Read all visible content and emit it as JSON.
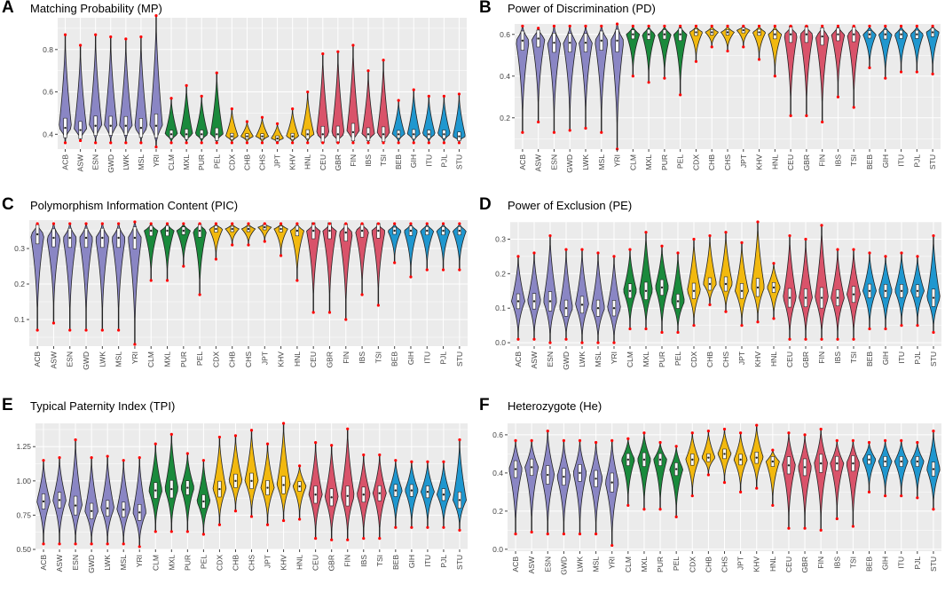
{
  "populations": [
    "ACB",
    "ASW",
    "ESN",
    "GWD",
    "LWK",
    "MSL",
    "YRI",
    "CLM",
    "MXL",
    "PUR",
    "PEL",
    "CDX",
    "CHB",
    "CHS",
    "JPT",
    "KHV",
    "HNL",
    "CEU",
    "GBR",
    "FIN",
    "IBS",
    "TSI",
    "BEB",
    "GIH",
    "ITU",
    "PJL",
    "STU"
  ],
  "group_colors": [
    "#8a86c4",
    "#8a86c4",
    "#8a86c4",
    "#8a86c4",
    "#8a86c4",
    "#8a86c4",
    "#8a86c4",
    "#1a8a3c",
    "#1a8a3c",
    "#1a8a3c",
    "#1a8a3c",
    "#f2b90f",
    "#f2b90f",
    "#f2b90f",
    "#f2b90f",
    "#f2b90f",
    "#f2b90f",
    "#d9536a",
    "#d9536a",
    "#d9536a",
    "#d9536a",
    "#d9536a",
    "#1f97cf",
    "#1f97cf",
    "#1f97cf",
    "#1f97cf",
    "#1f97cf"
  ],
  "colors": {
    "panel_bg": "#ebebeb",
    "grid": "#ffffff",
    "outlier": "#ff0000",
    "outline": "#222222"
  },
  "chart_data": [
    {
      "letter": "A",
      "title": "Matching Probability (MP)",
      "type": "violin",
      "ylim": [
        0.33,
        0.95
      ],
      "yticks": [
        0.4,
        0.6,
        0.8
      ],
      "tick_labels": [
        "0.4",
        "0.6",
        "0.8"
      ],
      "stats": [
        [
          0.36,
          0.87,
          0.43
        ],
        [
          0.37,
          0.82,
          0.42
        ],
        [
          0.36,
          0.87,
          0.44
        ],
        [
          0.36,
          0.86,
          0.44
        ],
        [
          0.36,
          0.85,
          0.44
        ],
        [
          0.36,
          0.86,
          0.43
        ],
        [
          0.34,
          0.96,
          0.44
        ],
        [
          0.36,
          0.57,
          0.4
        ],
        [
          0.36,
          0.63,
          0.4
        ],
        [
          0.36,
          0.58,
          0.4
        ],
        [
          0.36,
          0.69,
          0.4
        ],
        [
          0.36,
          0.52,
          0.39
        ],
        [
          0.36,
          0.46,
          0.39
        ],
        [
          0.36,
          0.48,
          0.39
        ],
        [
          0.36,
          0.45,
          0.38
        ],
        [
          0.36,
          0.52,
          0.39
        ],
        [
          0.36,
          0.6,
          0.4
        ],
        [
          0.36,
          0.78,
          0.4
        ],
        [
          0.36,
          0.79,
          0.4
        ],
        [
          0.36,
          0.82,
          0.41
        ],
        [
          0.36,
          0.7,
          0.4
        ],
        [
          0.36,
          0.75,
          0.4
        ],
        [
          0.36,
          0.56,
          0.4
        ],
        [
          0.36,
          0.61,
          0.4
        ],
        [
          0.36,
          0.58,
          0.4
        ],
        [
          0.36,
          0.58,
          0.4
        ],
        [
          0.36,
          0.59,
          0.39
        ]
      ]
    },
    {
      "letter": "B",
      "title": "Power of Discrimination (PD)",
      "type": "violin",
      "ylim": [
        0.05,
        0.65
      ],
      "yticks": [
        0.2,
        0.4,
        0.6
      ],
      "tick_labels": [
        "0.2",
        "0.4",
        "0.6"
      ],
      "stats": [
        [
          0.13,
          0.64,
          0.57
        ],
        [
          0.18,
          0.63,
          0.58
        ],
        [
          0.13,
          0.64,
          0.56
        ],
        [
          0.14,
          0.64,
          0.56
        ],
        [
          0.15,
          0.64,
          0.56
        ],
        [
          0.13,
          0.64,
          0.57
        ],
        [
          0.05,
          0.65,
          0.57
        ],
        [
          0.4,
          0.64,
          0.6
        ],
        [
          0.37,
          0.64,
          0.6
        ],
        [
          0.39,
          0.64,
          0.6
        ],
        [
          0.31,
          0.64,
          0.6
        ],
        [
          0.47,
          0.64,
          0.61
        ],
        [
          0.54,
          0.64,
          0.61
        ],
        [
          0.52,
          0.64,
          0.61
        ],
        [
          0.54,
          0.64,
          0.62
        ],
        [
          0.48,
          0.64,
          0.61
        ],
        [
          0.4,
          0.64,
          0.6
        ],
        [
          0.21,
          0.64,
          0.6
        ],
        [
          0.21,
          0.64,
          0.6
        ],
        [
          0.18,
          0.64,
          0.59
        ],
        [
          0.3,
          0.64,
          0.6
        ],
        [
          0.25,
          0.64,
          0.6
        ],
        [
          0.44,
          0.64,
          0.6
        ],
        [
          0.39,
          0.64,
          0.6
        ],
        [
          0.42,
          0.64,
          0.6
        ],
        [
          0.42,
          0.64,
          0.6
        ],
        [
          0.41,
          0.64,
          0.61
        ]
      ]
    },
    {
      "letter": "C",
      "title": "Polymorphism Information Content (PIC)",
      "type": "violin",
      "ylim": [
        0.025,
        0.38
      ],
      "yticks": [
        0.1,
        0.2,
        0.3
      ],
      "tick_labels": [
        "0.1",
        "0.2",
        "0.3"
      ],
      "stats": [
        [
          0.07,
          0.37,
          0.34
        ],
        [
          0.09,
          0.37,
          0.33
        ],
        [
          0.07,
          0.37,
          0.33
        ],
        [
          0.07,
          0.37,
          0.33
        ],
        [
          0.07,
          0.37,
          0.33
        ],
        [
          0.07,
          0.37,
          0.33
        ],
        [
          0.03,
          0.375,
          0.33
        ],
        [
          0.21,
          0.37,
          0.35
        ],
        [
          0.21,
          0.37,
          0.35
        ],
        [
          0.25,
          0.37,
          0.35
        ],
        [
          0.17,
          0.37,
          0.35
        ],
        [
          0.27,
          0.37,
          0.355
        ],
        [
          0.31,
          0.37,
          0.355
        ],
        [
          0.31,
          0.37,
          0.355
        ],
        [
          0.32,
          0.37,
          0.36
        ],
        [
          0.28,
          0.37,
          0.355
        ],
        [
          0.21,
          0.37,
          0.35
        ],
        [
          0.12,
          0.37,
          0.35
        ],
        [
          0.12,
          0.37,
          0.35
        ],
        [
          0.1,
          0.37,
          0.345
        ],
        [
          0.17,
          0.37,
          0.35
        ],
        [
          0.14,
          0.37,
          0.35
        ],
        [
          0.26,
          0.37,
          0.35
        ],
        [
          0.22,
          0.37,
          0.35
        ],
        [
          0.24,
          0.37,
          0.35
        ],
        [
          0.24,
          0.37,
          0.35
        ],
        [
          0.24,
          0.37,
          0.35
        ]
      ]
    },
    {
      "letter": "D",
      "title": "Power of Exclusion (PE)",
      "type": "violin",
      "ylim": [
        -0.01,
        0.35
      ],
      "yticks": [
        0.0,
        0.1,
        0.2,
        0.3
      ],
      "tick_labels": [
        "0.0",
        "0.1",
        "0.2",
        "0.3"
      ],
      "stats": [
        [
          0.01,
          0.25,
          0.12
        ],
        [
          0.01,
          0.26,
          0.12
        ],
        [
          0.0,
          0.31,
          0.12
        ],
        [
          0.01,
          0.27,
          0.1
        ],
        [
          0.0,
          0.27,
          0.11
        ],
        [
          0.0,
          0.26,
          0.1
        ],
        [
          0.0,
          0.25,
          0.1
        ],
        [
          0.04,
          0.27,
          0.15
        ],
        [
          0.04,
          0.32,
          0.15
        ],
        [
          0.03,
          0.28,
          0.16
        ],
        [
          0.03,
          0.26,
          0.12
        ],
        [
          0.05,
          0.3,
          0.15
        ],
        [
          0.11,
          0.31,
          0.17
        ],
        [
          0.09,
          0.32,
          0.17
        ],
        [
          0.05,
          0.29,
          0.15
        ],
        [
          0.06,
          0.35,
          0.16
        ],
        [
          0.07,
          0.23,
          0.16
        ],
        [
          0.01,
          0.31,
          0.13
        ],
        [
          0.01,
          0.3,
          0.13
        ],
        [
          0.01,
          0.34,
          0.13
        ],
        [
          0.01,
          0.27,
          0.13
        ],
        [
          0.01,
          0.27,
          0.14
        ],
        [
          0.04,
          0.26,
          0.15
        ],
        [
          0.04,
          0.25,
          0.15
        ],
        [
          0.05,
          0.26,
          0.15
        ],
        [
          0.05,
          0.25,
          0.15
        ],
        [
          0.03,
          0.31,
          0.13
        ]
      ]
    },
    {
      "letter": "E",
      "title": "Typical Paternity Index (TPI)",
      "type": "violin",
      "ylim": [
        0.5,
        1.42
      ],
      "yticks": [
        0.5,
        0.75,
        1.0,
        1.25
      ],
      "tick_labels": [
        "0.50",
        "0.75",
        "1.00",
        "1.25"
      ],
      "stats": [
        [
          0.54,
          1.15,
          0.85
        ],
        [
          0.54,
          1.17,
          0.86
        ],
        [
          0.54,
          1.3,
          0.82
        ],
        [
          0.54,
          1.17,
          0.78
        ],
        [
          0.54,
          1.18,
          0.8
        ],
        [
          0.54,
          1.15,
          0.79
        ],
        [
          0.52,
          1.17,
          0.77
        ],
        [
          0.63,
          1.27,
          0.93
        ],
        [
          0.63,
          1.34,
          0.94
        ],
        [
          0.63,
          1.2,
          0.95
        ],
        [
          0.61,
          1.15,
          0.85
        ],
        [
          0.68,
          1.32,
          0.94
        ],
        [
          0.78,
          1.33,
          1.0
        ],
        [
          0.74,
          1.37,
          1.0
        ],
        [
          0.68,
          1.27,
          0.95
        ],
        [
          0.71,
          1.42,
          0.97
        ],
        [
          0.72,
          1.11,
          0.96
        ],
        [
          0.58,
          1.28,
          0.9
        ],
        [
          0.57,
          1.26,
          0.88
        ],
        [
          0.57,
          1.38,
          0.89
        ],
        [
          0.58,
          1.19,
          0.9
        ],
        [
          0.58,
          1.19,
          0.91
        ],
        [
          0.66,
          1.15,
          0.93
        ],
        [
          0.66,
          1.14,
          0.93
        ],
        [
          0.66,
          1.14,
          0.92
        ],
        [
          0.66,
          1.14,
          0.9
        ],
        [
          0.64,
          1.3,
          0.86
        ]
      ]
    },
    {
      "letter": "F",
      "title": "Heterozygote (He)",
      "type": "violin",
      "ylim": [
        -0.01,
        0.66
      ],
      "yticks": [
        0.0,
        0.2,
        0.4,
        0.6
      ],
      "tick_labels": [
        "0.0",
        "0.2",
        "0.4",
        "0.6"
      ],
      "stats": [
        [
          0.08,
          0.57,
          0.42
        ],
        [
          0.09,
          0.57,
          0.43
        ],
        [
          0.08,
          0.62,
          0.39
        ],
        [
          0.08,
          0.57,
          0.38
        ],
        [
          0.08,
          0.57,
          0.4
        ],
        [
          0.08,
          0.56,
          0.37
        ],
        [
          0.02,
          0.57,
          0.35
        ],
        [
          0.23,
          0.58,
          0.47
        ],
        [
          0.21,
          0.61,
          0.47
        ],
        [
          0.21,
          0.56,
          0.47
        ],
        [
          0.17,
          0.54,
          0.42
        ],
        [
          0.28,
          0.61,
          0.47
        ],
        [
          0.39,
          0.62,
          0.48
        ],
        [
          0.35,
          0.63,
          0.5
        ],
        [
          0.3,
          0.61,
          0.47
        ],
        [
          0.32,
          0.65,
          0.48
        ],
        [
          0.23,
          0.52,
          0.46
        ],
        [
          0.11,
          0.61,
          0.44
        ],
        [
          0.11,
          0.6,
          0.43
        ],
        [
          0.1,
          0.63,
          0.45
        ],
        [
          0.16,
          0.57,
          0.45
        ],
        [
          0.12,
          0.57,
          0.45
        ],
        [
          0.3,
          0.56,
          0.47
        ],
        [
          0.28,
          0.57,
          0.46
        ],
        [
          0.28,
          0.57,
          0.46
        ],
        [
          0.27,
          0.56,
          0.46
        ],
        [
          0.21,
          0.62,
          0.42
        ]
      ]
    }
  ]
}
